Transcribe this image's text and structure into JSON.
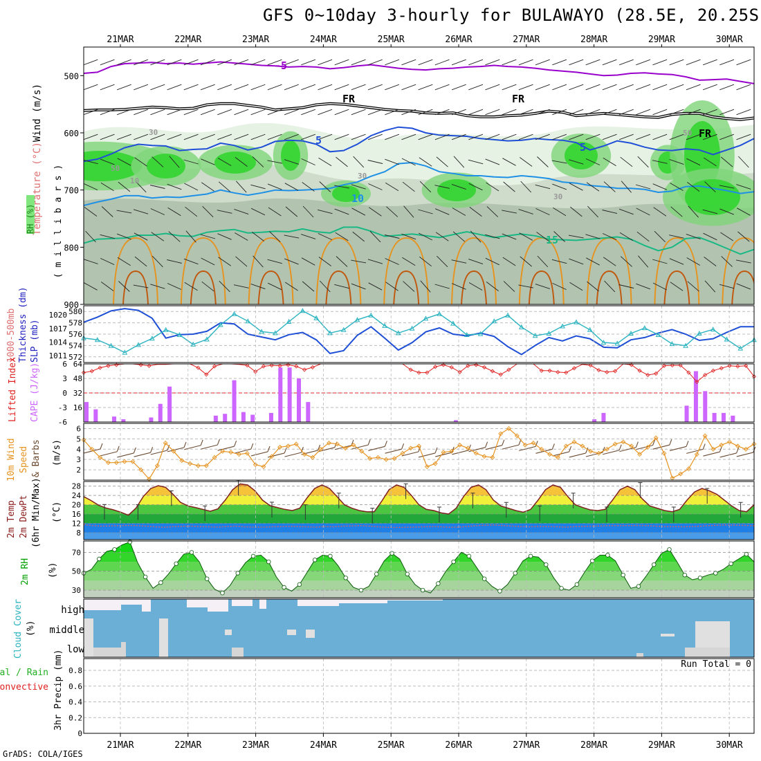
{
  "title": "GFS 0~10day 3-hourly for BULAWAYO (28.5E, 20.25S)",
  "credit": "GrADS: COLA/IGES",
  "dates": [
    "21MAR",
    "22MAR",
    "23MAR",
    "24MAR",
    "25MAR",
    "26MAR",
    "27MAR",
    "28MAR",
    "29MAR",
    "30MAR"
  ],
  "colors": {
    "purple": "#9900cc",
    "blue": "#1f4fd6",
    "light_blue": "#1e90e6",
    "teal": "#18b884",
    "orange": "#e69320",
    "cyan": "#2ab3c0",
    "red": "#e02020",
    "violet_bar": "#cc66ff",
    "green": "#00cc00",
    "cloud": "#6baed6"
  },
  "chart_data": [
    {
      "type": "contour",
      "name": "vertical_profile",
      "ylabel_parts": [
        "Wind",
        "(m/s)",
        "Temperature",
        "(°C)",
        "RH",
        "(%)"
      ],
      "ylabel_units": "( m i l l i b a r s )",
      "ylim": [
        450,
        900
      ],
      "yticks": [
        500,
        600,
        700,
        800,
        900
      ],
      "contour_labels": [
        "-5",
        "FR",
        "FR",
        "FR",
        "5",
        "5",
        "10",
        "15",
        "10",
        "30",
        "50",
        "30",
        "50",
        "30"
      ],
      "series": [
        {
          "name": "-5 isotherm",
          "color": "purple",
          "pressure": [
            496,
            494,
            484,
            479,
            478,
            477,
            479,
            478,
            480,
            478,
            476,
            478,
            480,
            482,
            483,
            485,
            484,
            485,
            488,
            486,
            483,
            481,
            484,
            487,
            489,
            490,
            488,
            487,
            485,
            484,
            482,
            484,
            485,
            487,
            490,
            492,
            494,
            497,
            500,
            499,
            496,
            495,
            497,
            498,
            502,
            508,
            507,
            506,
            510,
            514
          ]
        },
        {
          "name": "FR isotherm (0)",
          "color": "black",
          "pressure": [
            561,
            560,
            560,
            559,
            557,
            555,
            556,
            558,
            557,
            551,
            549,
            549,
            552,
            555,
            560,
            558,
            556,
            551,
            549,
            550,
            553,
            556,
            559,
            561,
            562,
            565,
            566,
            565,
            570,
            572,
            572,
            570,
            569,
            566,
            562,
            564,
            570,
            568,
            566,
            568,
            570,
            572,
            573,
            568,
            566,
            566,
            572,
            575,
            577,
            574
          ]
        },
        {
          "name": "5 isotherm",
          "color": "blue",
          "pressure": [
            650,
            646,
            637,
            626,
            620,
            622,
            623,
            631,
            629,
            628,
            618,
            622,
            630,
            625,
            615,
            613,
            614,
            620,
            633,
            631,
            620,
            605,
            596,
            590,
            592,
            600,
            604,
            605,
            606,
            610,
            612,
            614,
            613,
            610,
            612,
            613,
            617,
            630,
            623,
            614,
            618,
            625,
            630,
            631,
            628,
            630,
            638,
            630,
            622,
            610
          ]
        },
        {
          "name": "10 isotherm",
          "color": "light_blue",
          "pressure": [
            727,
            721,
            716,
            710,
            710,
            714,
            712,
            713,
            710,
            707,
            700,
            705,
            709,
            705,
            700,
            701,
            700,
            699,
            697,
            691,
            686,
            676,
            668,
            654,
            652,
            658,
            668,
            671,
            675,
            675,
            677,
            678,
            675,
            677,
            680,
            686,
            688,
            692,
            694,
            697,
            697,
            699,
            704,
            702,
            694,
            693,
            697,
            701,
            706,
            703
          ]
        },
        {
          "name": "15 isotherm",
          "color": "teal",
          "pressure": [
            793,
            786,
            785,
            784,
            779,
            779,
            776,
            780,
            781,
            774,
            771,
            769,
            775,
            774,
            772,
            773,
            768,
            773,
            775,
            765,
            765,
            772,
            781,
            779,
            777,
            780,
            783,
            778,
            773,
            778,
            783,
            780,
            777,
            780,
            786,
            787,
            788,
            786,
            784,
            782,
            786,
            797,
            806,
            800,
            785,
            783,
            792,
            802,
            812,
            804
          ]
        }
      ]
    },
    {
      "type": "line",
      "name": "thickness_slp",
      "ylabel_parts": [
        "1000-500mb",
        "Thickness (dm)",
        "SLP (mb)"
      ],
      "left_ticks": [
        572,
        574,
        576,
        578,
        580
      ],
      "right_ticks": [
        1011,
        1014,
        1017,
        1020
      ],
      "left_range": [
        571,
        581
      ],
      "right_range": [
        1009.5,
        1022
      ],
      "series": [
        {
          "name": "1000-500mb Thickness (dm)",
          "color": "blue",
          "axis": "left",
          "values": [
            578.1,
            579.0,
            580.1,
            580.5,
            580.2,
            578.8,
            575.3,
            575.9,
            576.0,
            576.5,
            578.0,
            577.8,
            576.0,
            575.5,
            575.0,
            575.9,
            576.3,
            575.0,
            572.6,
            573.1,
            575.8,
            577.3,
            575.3,
            573.2,
            574.5,
            576.4,
            577.1,
            576.0,
            575.7,
            576.2,
            575.6,
            573.8,
            572.4,
            574.0,
            575.4,
            574.8,
            575.7,
            575.2,
            573.7,
            573.6,
            575.0,
            575.4,
            576.2,
            576.8,
            576.0,
            574.9,
            575.2,
            576.3,
            577.3,
            577.3
          ]
        },
        {
          "name": "SLP (mb)",
          "color": "cyan",
          "axis": "right",
          "values": [
            1014.9,
            1014.5,
            1013.2,
            1011.7,
            1013.4,
            1014.8,
            1016.7,
            1015.6,
            1013.5,
            1014.6,
            1017.8,
            1020.2,
            1018.6,
            1016.3,
            1016.0,
            1018.5,
            1020.9,
            1019.3,
            1016.0,
            1016.7,
            1018.9,
            1019.9,
            1017.6,
            1016.0,
            1017.0,
            1019.2,
            1020.2,
            1018.1,
            1015.6,
            1015.8,
            1018.6,
            1019.9,
            1017.3,
            1015.4,
            1015.9,
            1017.5,
            1018.4,
            1016.7,
            1013.9,
            1013.7,
            1015.9,
            1017.1,
            1015.6,
            1013.6,
            1013.2,
            1015.9,
            1016.8,
            1014.6,
            1012.6,
            1014.5
          ]
        }
      ]
    },
    {
      "type": "bar",
      "name": "cape_li",
      "ylabel_parts": [
        "Lifted Index",
        "CAPE (J/kg)"
      ],
      "li_ticks": [
        6,
        3,
        0,
        -3,
        -6
      ],
      "li_range": [
        6,
        -6
      ],
      "cape_ticks": [
        16,
        32,
        48,
        64
      ],
      "cape_range": [
        0,
        64
      ],
      "cape_values": [
        22,
        14,
        0,
        6,
        3,
        0,
        0,
        5,
        20,
        39,
        0,
        0,
        0,
        0,
        7,
        9,
        46,
        11,
        8,
        0,
        10,
        60,
        60,
        48,
        22,
        0,
        0,
        0,
        0,
        0,
        0,
        0,
        0,
        0,
        0,
        0,
        0,
        0,
        0,
        0,
        2,
        0,
        0,
        0,
        0,
        0,
        0,
        0,
        0,
        0,
        0,
        0,
        0,
        0,
        0,
        3,
        10,
        0,
        0,
        0,
        0,
        0,
        0,
        0,
        0,
        18,
        56,
        34,
        10,
        10,
        7,
        0,
        0
      ],
      "li_values": [
        4.2,
        4.5,
        5.2,
        5.6,
        5.8,
        6,
        6,
        5.8,
        5.6,
        5.9,
        5.9,
        6,
        6,
        6,
        5.2,
        3.8,
        5.5,
        6,
        6,
        5.9,
        5.7,
        4.4,
        5.5,
        5.7,
        5.6,
        5.8,
        5.5,
        4.8,
        5.3,
        6,
        6,
        6,
        6,
        6,
        6,
        6,
        6,
        6,
        6,
        6,
        4.8,
        4.2,
        4.2,
        5.4,
        5.8,
        5.3,
        4.3,
        5.6,
        5.8,
        5.3,
        4.5,
        3.8,
        4.8,
        6,
        6,
        6,
        4.6,
        4.6,
        4.3,
        4.2,
        5.1,
        5.9,
        5.7,
        4.7,
        4.3,
        4.5,
        6,
        5.8,
        4.6,
        3.7,
        4,
        5.6,
        5.7,
        5.7,
        4.2,
        2.3,
        3.7,
        4.6,
        5.1,
        5.6,
        5.5,
        5.6,
        3.4
      ]
    },
    {
      "type": "line",
      "name": "wind_10m",
      "ylabel_parts": [
        "10m Wind",
        "Speed",
        "& Barbs",
        "(m/s)"
      ],
      "yticks": [
        2,
        3,
        4,
        5,
        6
      ],
      "ylim": [
        1.0,
        6.5
      ],
      "series": [
        {
          "name": "10m Wind Speed (m/s)",
          "color": "orange",
          "values": [
            4.9,
            4.0,
            3.2,
            2.7,
            2.7,
            2.8,
            2.8,
            2.0,
            1.1,
            2.4,
            4.6,
            3.8,
            2.9,
            2.6,
            2.4,
            2.4,
            3.2,
            3.8,
            3.7,
            3.5,
            3.6,
            2.5,
            2.3,
            3.3,
            4.2,
            4.3,
            4.5,
            3.5,
            3.2,
            4.0,
            4.6,
            4.5,
            4.1,
            4.4,
            3.8,
            3.1,
            3.2,
            3.0,
            3.1,
            3.6,
            4.1,
            4.3,
            2.3,
            2.6,
            3.7,
            3.8,
            4.4,
            4.1,
            3.6,
            3.3,
            3.2,
            5.5,
            6.0,
            5.3,
            4.4,
            4.6,
            4.0,
            3.5,
            3.2,
            4.3,
            4.7,
            4.3,
            3.8,
            3.6,
            4.0,
            4.5,
            4.7,
            4.3,
            3.5,
            4.2,
            5.1,
            3.6,
            1.2,
            1.6,
            2.1,
            3.5,
            5.3,
            4.0,
            4.4,
            4.7,
            4.3,
            4.0,
            4.5
          ]
        }
      ]
    },
    {
      "type": "area",
      "name": "temp_2m",
      "ylabel_parts": [
        "2m Temp",
        "2m DewPt",
        "(6hr Min/Max)",
        "(°C)"
      ],
      "yticks": [
        8,
        12,
        16,
        20,
        24,
        28
      ],
      "ylim": [
        5,
        30
      ],
      "series": [
        {
          "name": "2m Temp (°C)",
          "color": "#802020",
          "values": [
            23.5,
            21.8,
            19.8,
            18.6,
            17.8,
            16.8,
            15.5,
            18.5,
            23.5,
            27.0,
            28.2,
            27.5,
            24.5,
            21.0,
            19.5,
            18.8,
            18.0,
            17.2,
            18.2,
            22.0,
            26.5,
            29.0,
            28.5,
            26.0,
            22.0,
            19.6,
            18.8,
            18.0,
            17.5,
            18.5,
            23.0,
            27.0,
            28.5,
            27.0,
            23.5,
            20.0,
            18.5,
            17.5,
            17.0,
            17.0,
            21.5,
            26.5,
            28.5,
            27.5,
            24.0,
            20.0,
            18.0,
            17.5,
            16.5,
            16.0,
            18.5,
            23.5,
            27.5,
            28.5,
            26.5,
            22.0,
            19.5,
            18.5,
            17.5,
            16.8,
            18.0,
            22.0,
            26.5,
            28.5,
            27.5,
            23.5,
            20.0,
            18.8,
            17.8,
            17.5,
            18.0,
            22.0,
            26.5,
            28.0,
            26.5,
            22.5,
            19.5,
            18.5,
            17.5,
            17.0,
            18.0,
            22.0,
            25.5,
            27.0,
            26.0,
            24.5,
            22.0,
            19.5,
            17.5,
            17.0,
            20.0
          ]
        },
        {
          "name": "2m DewPt (°C)",
          "color": "#cc6666",
          "values": [
            11.5,
            11.0,
            10.8,
            10.9,
            11.0,
            11.1,
            11.0,
            10.8,
            10.5,
            10.3,
            10.6,
            10.7,
            10.8,
            10.6,
            10.5,
            10.4,
            10.6,
            10.8,
            10.5,
            10.4,
            10.4,
            10.5,
            10.6,
            10.7,
            10.6,
            10.5,
            10.4,
            10.6,
            10.5,
            10.8,
            10.9,
            11.0,
            10.8,
            10.5,
            10.3,
            10.2,
            10.3,
            10.4,
            10.5,
            10.6,
            10.5,
            10.3,
            10.4,
            10.7,
            11.0,
            11.2,
            11.3,
            11.0,
            10.8,
            10.6,
            10.5,
            10.7,
            10.6,
            10.5,
            10.4,
            10.6,
            10.7,
            10.8,
            10.9,
            11.0,
            11.0,
            11.0,
            11.1,
            11.0,
            10.8,
            10.6,
            10.6,
            10.5,
            10.6,
            10.8,
            11.0,
            11.2,
            11.3,
            11.2,
            11.1,
            11.0
          ]
        }
      ]
    },
    {
      "type": "area",
      "name": "rh_2m",
      "ylabel_parts": [
        "2m RH",
        "(%)"
      ],
      "yticks": [
        30,
        50,
        70
      ],
      "ylim": [
        22,
        82
      ],
      "series": [
        {
          "name": "2m RH (%)",
          "color": "green",
          "values": [
            48,
            52,
            63,
            71,
            73,
            78,
            81,
            59,
            44,
            32,
            38,
            47,
            58,
            68,
            70,
            60,
            42,
            31,
            27,
            35,
            48,
            59,
            66,
            67,
            60,
            44,
            33,
            29,
            36,
            49,
            62,
            67,
            66,
            56,
            43,
            33,
            30,
            34,
            47,
            61,
            69,
            63,
            47,
            36,
            30,
            27,
            37,
            50,
            60,
            70,
            66,
            54,
            42,
            34,
            29,
            36,
            48,
            61,
            66,
            65,
            57,
            43,
            32,
            30,
            36,
            49,
            61,
            67,
            67,
            61,
            46,
            32,
            34,
            45,
            57,
            69,
            73,
            60,
            46,
            41,
            43,
            46,
            48,
            52,
            58,
            63,
            68,
            60
          ]
        }
      ]
    },
    {
      "type": "heatmap",
      "name": "cloud_cover",
      "ylabel_parts": [
        "Cloud Cover",
        "(%)"
      ],
      "levels": [
        "high",
        "middle",
        "low"
      ]
    },
    {
      "type": "bar",
      "name": "precip_3hr",
      "ylabel_parts": [
        "Total / Rain",
        "Convective",
        "3hr Precip (mm)"
      ],
      "yticks": [
        0,
        0.2,
        0.4,
        0.6,
        0.8
      ],
      "ylim": [
        0,
        0.95
      ],
      "run_total_label": "Run Total = 0",
      "values": []
    }
  ]
}
